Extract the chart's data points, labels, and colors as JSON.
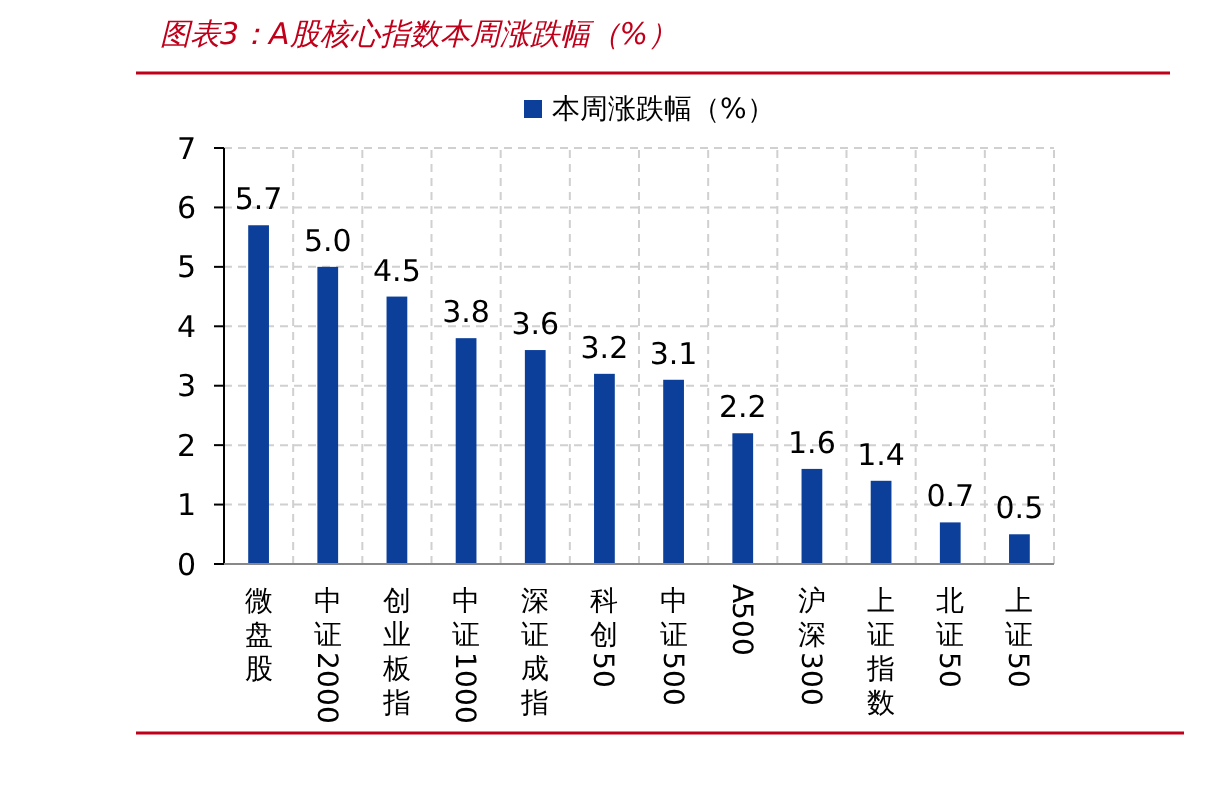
{
  "chart_data": {
    "type": "bar",
    "title": "图表3：A股核心指数本周涨跌幅（%）",
    "categories": [
      "微盘股",
      "中证2000",
      "创业板指",
      "中证1000",
      "深证成指",
      "科创50",
      "中证500",
      "A500",
      "沪深300",
      "上证指数",
      "北证50",
      "上证50"
    ],
    "series": [
      {
        "name": "本周涨跌幅（%）",
        "color": "#0b3f9a",
        "values": [
          5.7,
          5.0,
          4.5,
          3.8,
          3.6,
          3.2,
          3.1,
          2.2,
          1.6,
          1.4,
          0.7,
          0.5
        ]
      }
    ],
    "value_labels": [
      "5.7",
      "5.0",
      "4.5",
      "3.8",
      "3.6",
      "3.2",
      "3.1",
      "2.2",
      "1.6",
      "1.4",
      "0.7",
      "0.5"
    ],
    "ylim": [
      0,
      7
    ],
    "yticks": [
      0,
      1,
      2,
      3,
      4,
      5,
      6,
      7
    ],
    "grid": true,
    "legend": "top"
  }
}
